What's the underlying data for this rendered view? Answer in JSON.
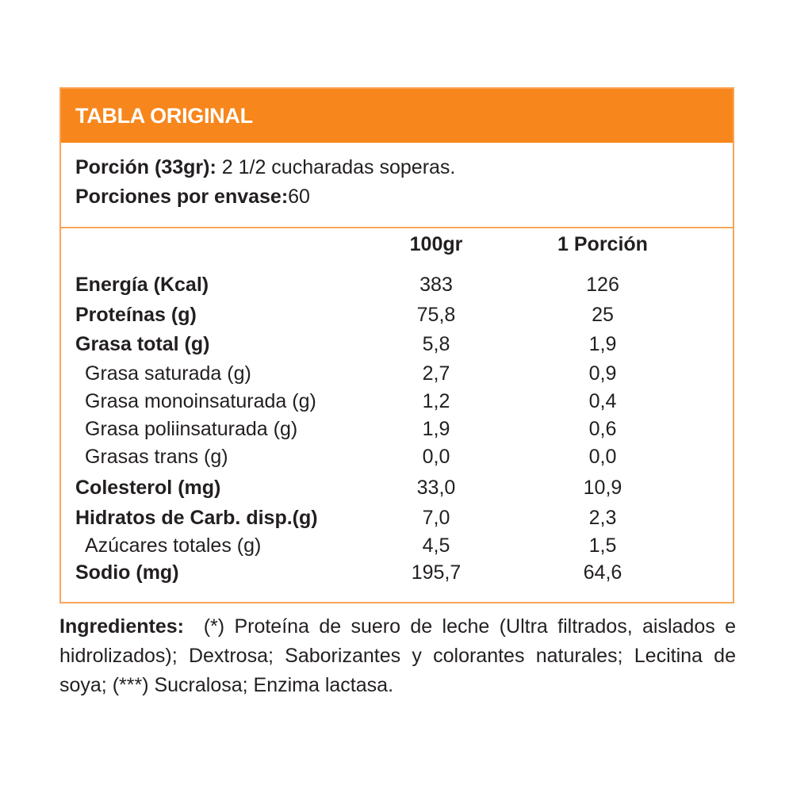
{
  "title": "TABLA ORIGINAL",
  "portion": {
    "label": "Porción (33gr):",
    "value": "2 1/2 cucharadas soperas."
  },
  "servings": {
    "label": "Porciones por envase:",
    "value": "60"
  },
  "columns": [
    "100gr",
    "1 Porción"
  ],
  "rows": [
    {
      "label": "Energía (Kcal)",
      "v100": "383",
      "vportion": "126",
      "bold": true
    },
    {
      "label": "Proteínas (g)",
      "v100": "75,8",
      "vportion": "25",
      "bold": true
    },
    {
      "label": "Grasa total (g)",
      "v100": "5,8",
      "vportion": "1,9",
      "bold": true
    },
    {
      "label": "Grasa saturada (g)",
      "v100": "2,7",
      "vportion": "0,9",
      "bold": false
    },
    {
      "label": "Grasa monoinsaturada (g)",
      "v100": "1,2",
      "vportion": "0,4",
      "bold": false
    },
    {
      "label": "Grasa poliinsaturada (g)",
      "v100": "1,9",
      "vportion": "0,6",
      "bold": false
    },
    {
      "label": "Grasas trans (g)",
      "v100": "0,0",
      "vportion": "0,0",
      "bold": false
    },
    {
      "label": "Colesterol (mg)",
      "v100": "33,0",
      "vportion": "10,9",
      "bold": true
    },
    {
      "label": "Hidratos de Carb. disp.(g)",
      "v100": "7,0",
      "vportion": "2,3",
      "bold": true
    },
    {
      "label": "Azúcares totales (g)",
      "v100": "4,5",
      "vportion": "1,5",
      "bold": false
    },
    {
      "label": "Sodio (mg)",
      "v100": "195,7",
      "vportion": "64,6",
      "bold": true
    }
  ],
  "ingredients": {
    "label": "Ingredientes:",
    "text": "(*) Proteína de suero de leche (Ultra filtrados, aislados e hidrolizados); Dextrosa; Saborizantes y colorantes naturales; Lecitina de soya; (***) Sucralosa; Enzima lactasa."
  },
  "colors": {
    "accent": "#f7861c",
    "border": "#f7a55a",
    "text": "#231f20"
  }
}
